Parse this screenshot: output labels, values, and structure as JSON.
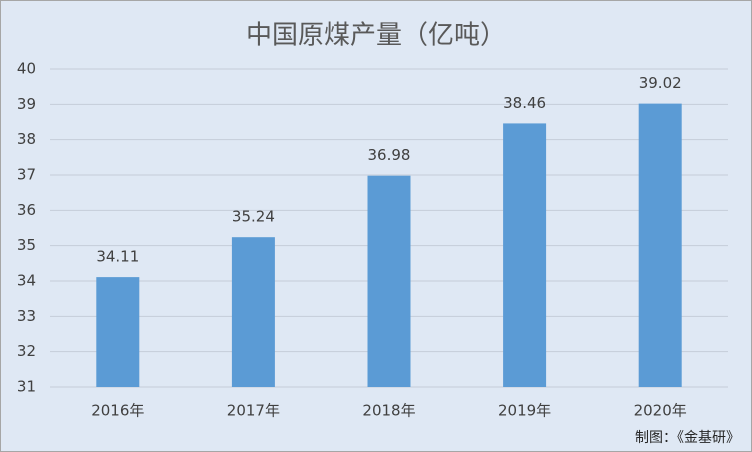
{
  "chart_data": {
    "type": "bar",
    "title": "中国原煤产量（亿吨）",
    "categories": [
      "2016年",
      "2017年",
      "2018年",
      "2019年",
      "2020年"
    ],
    "values": [
      34.11,
      35.24,
      36.98,
      38.46,
      39.02
    ],
    "color": "#5b9bd5",
    "ylim": [
      31,
      40
    ],
    "yticks": [
      31,
      32,
      33,
      34,
      35,
      36,
      37,
      38,
      39,
      40
    ],
    "grid": true,
    "source": "制图：《金基研》"
  }
}
